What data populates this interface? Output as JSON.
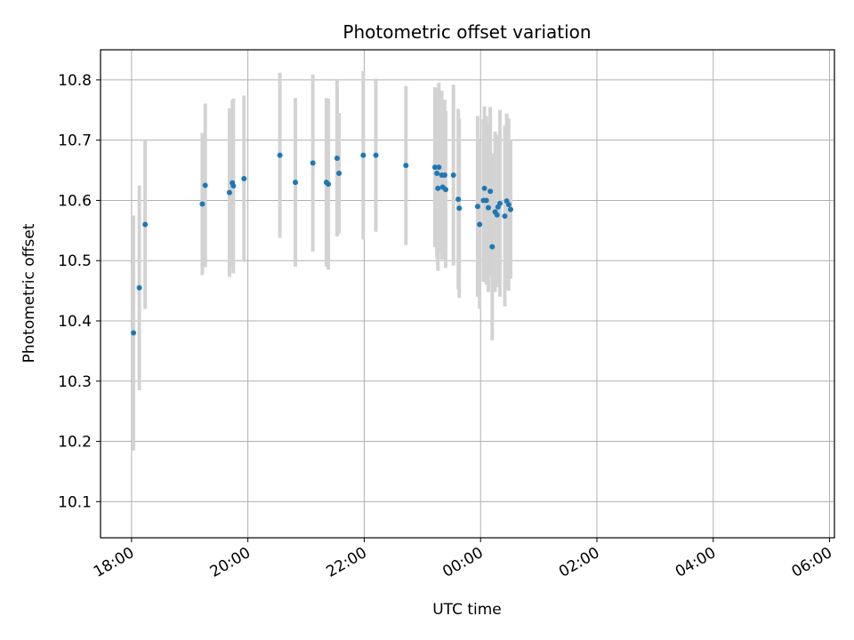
{
  "colors": {
    "point": "#1f77b4",
    "errorbar": "#d3d3d3",
    "grid": "#b0b0b0",
    "axis": "#000000"
  },
  "chart_data": {
    "type": "scatter",
    "title": "Photometric offset variation",
    "xlabel": "UTC time",
    "ylabel": "Photometric offset",
    "x_ticks": [
      "18:00",
      "20:00",
      "22:00",
      "00:00",
      "02:00",
      "04:00",
      "06:00"
    ],
    "y_ticks": [
      "10.1",
      "10.2",
      "10.3",
      "10.4",
      "10.5",
      "10.6",
      "10.7",
      "10.8"
    ],
    "xlim": [
      "17:28",
      "06:05"
    ],
    "ylim": [
      10.04,
      10.85
    ],
    "grid": true,
    "series": [
      {
        "x": [
          "18:02",
          "18:08",
          "18:14",
          "19:13",
          "19:16",
          "19:41",
          "19:44",
          "19:45",
          "19:56",
          "20:33",
          "20:49",
          "21:07",
          "21:21",
          "21:23",
          "21:32",
          "21:34",
          "21:59",
          "22:12",
          "22:43",
          "23:13",
          "23:15",
          "23:16",
          "23:17",
          "23:20",
          "23:21",
          "23:23",
          "23:24",
          "23:32",
          "23:37",
          "23:38",
          "23:57",
          "23:59",
          "23:63",
          "23:64",
          "23:66",
          "23:68",
          "23:70",
          "23:72",
          "23:75",
          "23:77",
          "23:78",
          "23:80",
          "23:85",
          "23:87",
          "23:89",
          "23:91"
        ],
        "y": [
          10.38,
          10.455,
          10.56,
          10.594,
          10.625,
          10.613,
          10.629,
          10.624,
          10.636,
          10.675,
          10.63,
          10.662,
          10.63,
          10.627,
          10.67,
          10.645,
          10.675,
          10.675,
          10.658,
          10.655,
          10.645,
          10.62,
          10.655,
          10.642,
          10.622,
          10.642,
          10.618,
          10.642,
          10.602,
          10.587,
          10.59,
          10.56,
          10.6,
          10.62,
          10.6,
          10.588,
          10.615,
          10.523,
          10.581,
          10.576,
          10.589,
          10.595,
          10.574,
          10.599,
          10.593,
          10.585
        ],
        "yerr": [
          0.195,
          0.17,
          0.14,
          0.118,
          0.136,
          0.14,
          0.137,
          0.145,
          0.138,
          0.137,
          0.14,
          0.147,
          0.14,
          0.142,
          0.13,
          0.1,
          0.14,
          0.127,
          0.132,
          0.133,
          0.141,
          0.137,
          0.14,
          0.14,
          0.12,
          0.125,
          0.13,
          0.15,
          0.15,
          0.149,
          0.15,
          0.14,
          0.135,
          0.136,
          0.14,
          0.14,
          0.14,
          0.155,
          0.133,
          0.12,
          0.12,
          0.155,
          0.15,
          0.145,
          0.143,
          0.115
        ]
      }
    ]
  }
}
